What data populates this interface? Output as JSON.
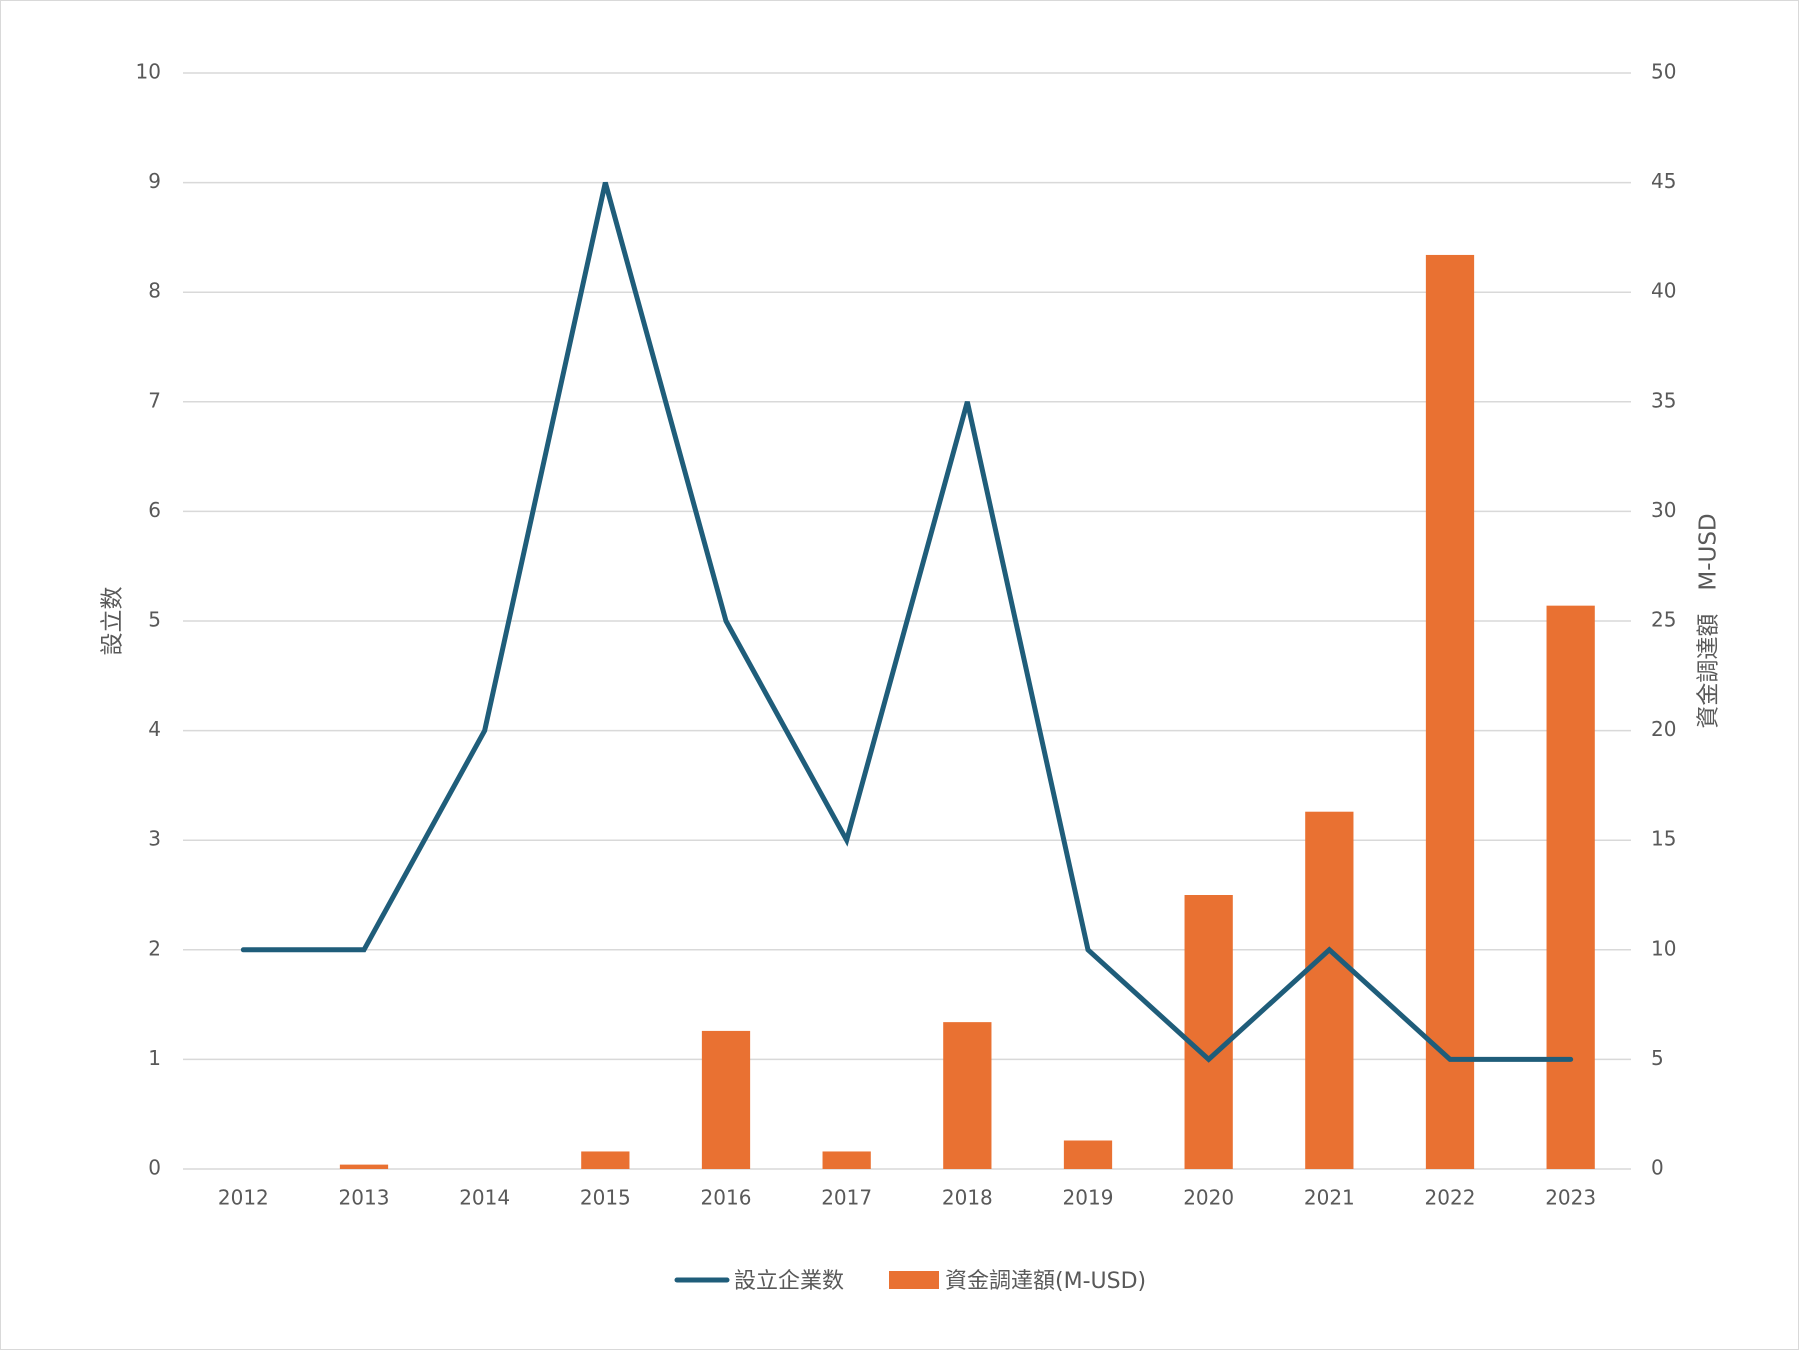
{
  "chart_data": {
    "type": "bar",
    "categories": [
      "2012",
      "2013",
      "2014",
      "2015",
      "2016",
      "2017",
      "2018",
      "2019",
      "2020",
      "2021",
      "2022",
      "2023"
    ],
    "series": [
      {
        "name": "設立企業数",
        "type": "line",
        "axis": "left",
        "color": "#1f5d7a",
        "values": [
          2,
          2,
          4,
          9,
          5,
          3,
          7,
          2,
          1,
          2,
          1,
          1
        ]
      },
      {
        "name": "資金調達額(M-USD)",
        "type": "bar",
        "axis": "right",
        "color": "#e97132",
        "values": [
          0,
          0.2,
          0,
          0.8,
          6.3,
          0.8,
          6.7,
          1.3,
          12.5,
          16.3,
          41.7,
          25.7
        ]
      }
    ],
    "y_left": {
      "label": "設立数",
      "ylim": [
        0,
        10
      ],
      "ticks": [
        0,
        1,
        2,
        3,
        4,
        5,
        6,
        7,
        8,
        9,
        10
      ]
    },
    "y_right": {
      "label": "資金調達額　M-USD",
      "ylim": [
        0,
        50
      ],
      "ticks": [
        0,
        5,
        10,
        15,
        20,
        25,
        30,
        35,
        40,
        45,
        50
      ]
    },
    "grid": true,
    "legend": "bottom"
  }
}
